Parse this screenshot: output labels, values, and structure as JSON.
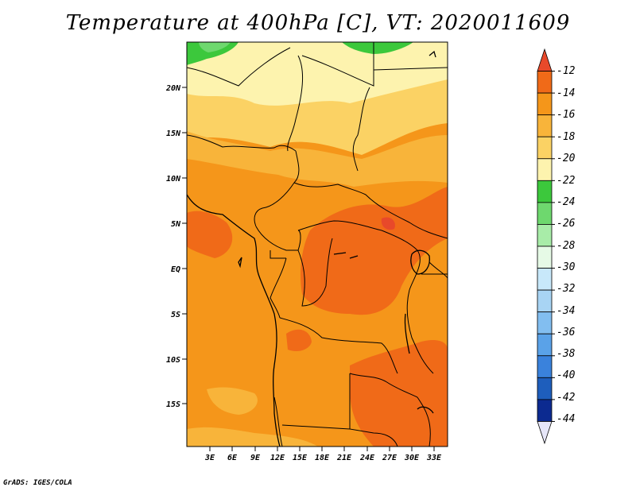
{
  "title": "Temperature at 400hPa [C], VT: 2020011609",
  "credit": "GrADS: IGES/COLA",
  "map": {
    "lat_labels": [
      "20N",
      "15N",
      "10N",
      "5N",
      "EQ",
      "5S",
      "10S",
      "15S"
    ],
    "lon_labels": [
      "3E",
      "6E",
      "9E",
      "12E",
      "15E",
      "18E",
      "21E",
      "24E",
      "27E",
      "30E",
      "33E"
    ],
    "region": "Central Africa",
    "field": "Temperature at 400hPa (C)"
  },
  "colorbar": {
    "labels": [
      "-12",
      "-14",
      "-16",
      "-18",
      "-20",
      "-22",
      "-24",
      "-26",
      "-28",
      "-30",
      "-32",
      "-34",
      "-36",
      "-38",
      "-40",
      "-42",
      "-44"
    ],
    "colors": [
      "#e8492a",
      "#f06a18",
      "#f5961a",
      "#f8b43a",
      "#fbd264",
      "#fdf3ae",
      "#3cc83c",
      "#6ed86e",
      "#a8eca8",
      "#e6fae6",
      "#c8e8fa",
      "#a8d4f4",
      "#82bef0",
      "#5aa2e8",
      "#3a82dc",
      "#1e5ebc",
      "#0c2a90",
      "#e6e6f8"
    ]
  }
}
